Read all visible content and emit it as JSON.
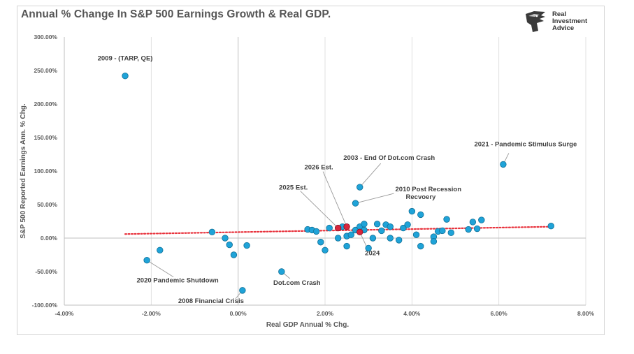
{
  "header": {
    "title": "Annual % Change In S&P 500 Earnings Growth & Real GDP."
  },
  "logo": {
    "line1": "Real",
    "line2": "Investment",
    "line3": "Advice",
    "icon": "eagle-head-icon"
  },
  "colors": {
    "points": "#1fa3d8",
    "points_stroke": "#0f6f96",
    "highlight_points": "#d7263d",
    "trendline": "#e8323c",
    "grid": "#d9d9d9",
    "axis": "#bfbfbf"
  },
  "chart_data": {
    "type": "scatter",
    "xlabel": "Real GDP Annual % Chg.",
    "ylabel": "S&P 500 Reported Earnings Ann. % Chg.",
    "xlim": [
      -4,
      8
    ],
    "ylim": [
      -100,
      300
    ],
    "x_ticks": [
      -4,
      -2,
      0,
      2,
      4,
      6,
      8
    ],
    "x_tick_labels": [
      "-4.00%",
      "-2.00%",
      "0.00%",
      "2.00%",
      "4.00%",
      "6.00%",
      "8.00%"
    ],
    "y_ticks": [
      -100,
      -50,
      0,
      50,
      100,
      150,
      200,
      250,
      300
    ],
    "y_tick_labels": [
      "-100.00%",
      "-50.00%",
      "0.00%",
      "50.00%",
      "100.00%",
      "150.00%",
      "200.00%",
      "250.00%",
      "300.00%"
    ],
    "grid": "vertical gridlines",
    "legend": "none",
    "series": [
      {
        "points": [
          [
            -2.6,
            242
          ],
          [
            6.1,
            110
          ],
          [
            2.8,
            76
          ],
          [
            2.7,
            52
          ],
          [
            -2.1,
            -33
          ],
          [
            -1.8,
            -18
          ],
          [
            -0.6,
            9
          ],
          [
            -0.3,
            0
          ],
          [
            -0.2,
            -10
          ],
          [
            -0.1,
            -25
          ],
          [
            0.2,
            -11
          ],
          [
            0.1,
            -78
          ],
          [
            1.0,
            -50
          ],
          [
            1.6,
            13
          ],
          [
            1.7,
            12
          ],
          [
            1.8,
            10
          ],
          [
            1.9,
            -6
          ],
          [
            2.0,
            -18
          ],
          [
            2.1,
            15
          ],
          [
            2.3,
            0
          ],
          [
            2.4,
            17
          ],
          [
            2.5,
            3
          ],
          [
            2.5,
            -12
          ],
          [
            2.6,
            5
          ],
          [
            2.7,
            12
          ],
          [
            2.8,
            17
          ],
          [
            2.9,
            12
          ],
          [
            2.9,
            21
          ],
          [
            3.0,
            -15
          ],
          [
            3.1,
            0
          ],
          [
            3.2,
            21
          ],
          [
            3.3,
            11
          ],
          [
            3.4,
            20
          ],
          [
            3.5,
            0
          ],
          [
            3.5,
            17
          ],
          [
            3.7,
            -3
          ],
          [
            3.8,
            15
          ],
          [
            3.9,
            20
          ],
          [
            4.0,
            40
          ],
          [
            4.1,
            5
          ],
          [
            4.2,
            35
          ],
          [
            4.2,
            -12
          ],
          [
            4.5,
            2
          ],
          [
            4.5,
            -5
          ],
          [
            4.6,
            10
          ],
          [
            4.7,
            11
          ],
          [
            4.8,
            28
          ],
          [
            4.9,
            8
          ],
          [
            5.3,
            13
          ],
          [
            5.4,
            24
          ],
          [
            5.5,
            14
          ],
          [
            5.6,
            27
          ],
          [
            7.2,
            18
          ]
        ]
      },
      {
        "points": [
          [
            2.3,
            15
          ],
          [
            2.5,
            17
          ],
          [
            2.8,
            9
          ]
        ]
      }
    ],
    "trendline": {
      "x": [
        -2.6,
        7.2
      ],
      "y": [
        6,
        17
      ]
    },
    "annotations": [
      {
        "text": "2009 - (TARP, QE)",
        "x": -2.6,
        "y": 242
      },
      {
        "text": "2021 - Pandemic Stimulus Surge",
        "x": 6.1,
        "y": 110
      },
      {
        "text": "2003 - End Of Dot.com Crash",
        "x": 2.8,
        "y": 76
      },
      {
        "text": "2010 Post Recession",
        "x": 2.7,
        "y": 52
      },
      {
        "text": "Recvoery",
        "x": 2.7,
        "y": 52
      },
      {
        "text": "2026 Est.",
        "x": 2.5,
        "y": 17
      },
      {
        "text": "2025 Est.",
        "x": 2.3,
        "y": 15
      },
      {
        "text": "2024",
        "x": 2.8,
        "y": 9
      },
      {
        "text": "2020 Pandemic Shutdown",
        "x": -2.1,
        "y": -33
      },
      {
        "text": "Dot.com Crash",
        "x": 1.0,
        "y": -50
      },
      {
        "text": "2008 Financial Crisis",
        "x": 0.1,
        "y": -78
      }
    ]
  }
}
